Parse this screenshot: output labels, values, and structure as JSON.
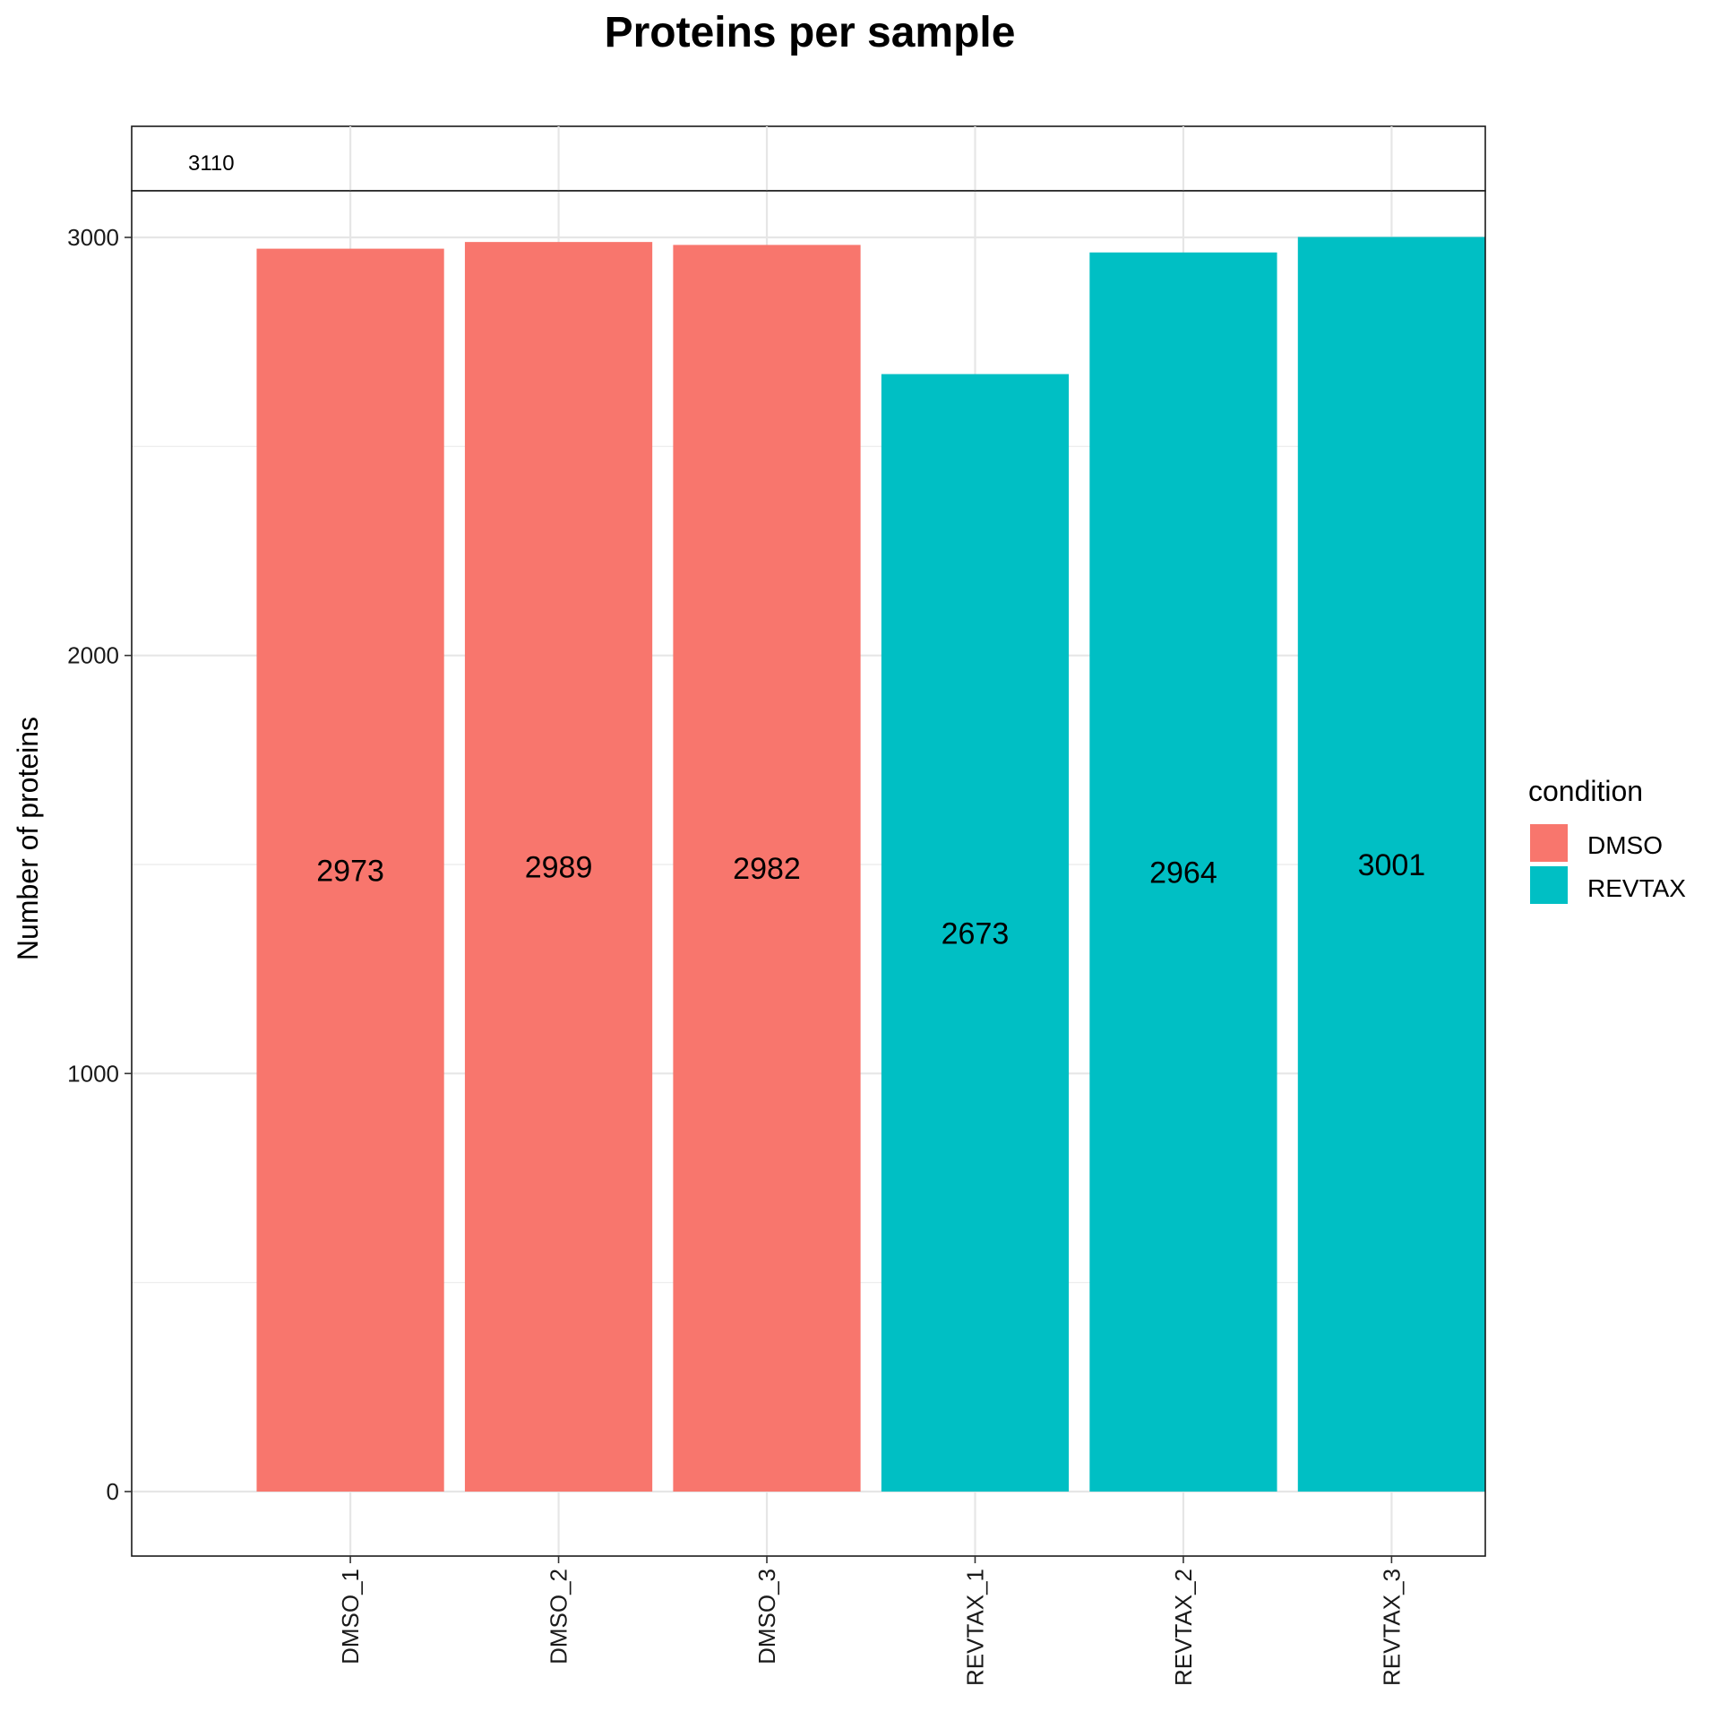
{
  "chart_data": {
    "type": "bar",
    "title": "Proteins per sample",
    "xlabel": "",
    "ylabel": "Number of proteins",
    "categories": [
      "DMSO_1",
      "DMSO_2",
      "DMSO_3",
      "REVTAX_1",
      "REVTAX_2",
      "REVTAX_3"
    ],
    "values": [
      2973,
      2989,
      2982,
      2673,
      2964,
      3001
    ],
    "value_labels": [
      "2973",
      "2989",
      "2982",
      "2673",
      "2964",
      "3001"
    ],
    "condition": [
      "DMSO",
      "DMSO",
      "DMSO",
      "REVTAX",
      "REVTAX",
      "REVTAX"
    ],
    "strip_label": "3110",
    "ylim": [
      -150,
      3110
    ],
    "yticks": [
      0,
      1000,
      2000,
      3000
    ],
    "ytick_labels": [
      "0",
      "1000",
      "2000",
      "3000"
    ],
    "grid": true,
    "legend": {
      "title": "condition",
      "position": "right",
      "entries": [
        {
          "label": "DMSO",
          "color": "#F8766D"
        },
        {
          "label": "REVTAX",
          "color": "#00BFC4"
        }
      ]
    }
  }
}
